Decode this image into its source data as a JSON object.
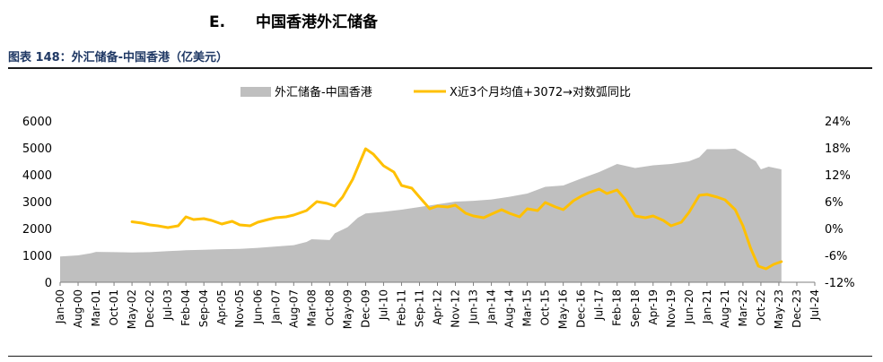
{
  "section": {
    "number": "E.",
    "title": "中国香港外汇储备"
  },
  "figure_title": "图表 148：外汇储备-中国香港（亿美元）",
  "colors": {
    "area": "#bfbfbf",
    "line": "#ffc000",
    "title": "#1f3864"
  },
  "chart_data": {
    "type": "area",
    "title": "图表 148：外汇储备-中国香港（亿美元）",
    "legend_position": "top",
    "x_range": [
      "2000-01",
      "2024-07"
    ],
    "x_ticks": [
      "Jan-00",
      "Aug-00",
      "Mar-01",
      "Oct-01",
      "May-02",
      "Dec-02",
      "Jul-03",
      "Feb-04",
      "Sep-04",
      "Apr-05",
      "Nov-05",
      "Jun-06",
      "Jan-07",
      "Aug-07",
      "Mar-08",
      "Oct-08",
      "May-09",
      "Dec-09",
      "Jul-10",
      "Feb-11",
      "Sep-11",
      "Apr-12",
      "Nov-12",
      "Jun-13",
      "Jan-14",
      "Aug-14",
      "Mar-15",
      "Oct-15",
      "May-16",
      "Dec-16",
      "Jul-17",
      "Feb-18",
      "Sep-18",
      "Apr-19",
      "Nov-19",
      "Jun-20",
      "Jan-21",
      "Aug-21",
      "Mar-22",
      "Oct-22",
      "May-23",
      "Dec-23",
      "Jul-24"
    ],
    "y_left": {
      "min": 0,
      "max": 6000,
      "ticks": [
        "0",
        "1000",
        "2000",
        "3000",
        "4000",
        "5000",
        "6000"
      ]
    },
    "y_right": {
      "min": -12,
      "max": 24,
      "ticks": [
        "-12%",
        "-6%",
        "0%",
        "6%",
        "12%",
        "18%",
        "24%"
      ]
    },
    "series": [
      {
        "name": "外汇储备-中国香港",
        "type": "area",
        "axis": "left",
        "points": [
          [
            "2000-01",
            960
          ],
          [
            "2000-08",
            1000
          ],
          [
            "2001-01",
            1080
          ],
          [
            "2001-03",
            1130
          ],
          [
            "2001-10",
            1120
          ],
          [
            "2002-05",
            1110
          ],
          [
            "2002-12",
            1120
          ],
          [
            "2003-07",
            1160
          ],
          [
            "2003-12",
            1180
          ],
          [
            "2004-02",
            1190
          ],
          [
            "2004-09",
            1210
          ],
          [
            "2005-04",
            1230
          ],
          [
            "2005-11",
            1240
          ],
          [
            "2006-06",
            1280
          ],
          [
            "2007-01",
            1330
          ],
          [
            "2007-08",
            1380
          ],
          [
            "2008-01",
            1500
          ],
          [
            "2008-03",
            1600
          ],
          [
            "2008-10",
            1570
          ],
          [
            "2008-12",
            1820
          ],
          [
            "2009-05",
            2050
          ],
          [
            "2009-09",
            2400
          ],
          [
            "2009-12",
            2560
          ],
          [
            "2010-07",
            2620
          ],
          [
            "2011-02",
            2700
          ],
          [
            "2011-09",
            2800
          ],
          [
            "2012-04",
            2900
          ],
          [
            "2012-11",
            3000
          ],
          [
            "2013-06",
            3030
          ],
          [
            "2014-01",
            3080
          ],
          [
            "2014-08",
            3180
          ],
          [
            "2015-03",
            3300
          ],
          [
            "2015-10",
            3550
          ],
          [
            "2016-05",
            3600
          ],
          [
            "2016-12",
            3860
          ],
          [
            "2017-07",
            4100
          ],
          [
            "2018-02",
            4400
          ],
          [
            "2018-09",
            4250
          ],
          [
            "2019-04",
            4350
          ],
          [
            "2019-11",
            4400
          ],
          [
            "2020-06",
            4500
          ],
          [
            "2020-10",
            4650
          ],
          [
            "2021-01",
            4950
          ],
          [
            "2021-08",
            4950
          ],
          [
            "2021-12",
            4970
          ],
          [
            "2022-03",
            4800
          ],
          [
            "2022-08",
            4500
          ],
          [
            "2022-10",
            4200
          ],
          [
            "2023-01",
            4300
          ],
          [
            "2023-06",
            4200
          ]
        ]
      },
      {
        "name": "X近3个月均值+3072→对数弧同比",
        "type": "line",
        "axis": "right",
        "points": [
          [
            "2002-05",
            1.5
          ],
          [
            "2002-09",
            1.2
          ],
          [
            "2002-12",
            0.8
          ],
          [
            "2003-03",
            0.6
          ],
          [
            "2003-07",
            0.2
          ],
          [
            "2003-11",
            0.6
          ],
          [
            "2004-02",
            2.6
          ],
          [
            "2004-05",
            2.0
          ],
          [
            "2004-09",
            2.2
          ],
          [
            "2004-12",
            1.8
          ],
          [
            "2005-04",
            1.0
          ],
          [
            "2005-08",
            1.6
          ],
          [
            "2005-11",
            0.8
          ],
          [
            "2006-03",
            0.6
          ],
          [
            "2006-06",
            1.4
          ],
          [
            "2006-10",
            2.0
          ],
          [
            "2007-01",
            2.4
          ],
          [
            "2007-05",
            2.6
          ],
          [
            "2007-08",
            3.0
          ],
          [
            "2008-01",
            4.0
          ],
          [
            "2008-05",
            6.0
          ],
          [
            "2008-09",
            5.6
          ],
          [
            "2008-12",
            5.0
          ],
          [
            "2009-03",
            7.0
          ],
          [
            "2009-07",
            11.0
          ],
          [
            "2009-12",
            17.8
          ],
          [
            "2010-03",
            16.6
          ],
          [
            "2010-07",
            14.0
          ],
          [
            "2010-11",
            12.6
          ],
          [
            "2011-02",
            9.6
          ],
          [
            "2011-06",
            9.0
          ],
          [
            "2011-09",
            7.0
          ],
          [
            "2012-01",
            4.4
          ],
          [
            "2012-04",
            5.0
          ],
          [
            "2012-08",
            4.8
          ],
          [
            "2012-11",
            5.2
          ],
          [
            "2013-03",
            3.4
          ],
          [
            "2013-06",
            2.8
          ],
          [
            "2013-10",
            2.4
          ],
          [
            "2014-01",
            3.2
          ],
          [
            "2014-05",
            4.2
          ],
          [
            "2014-08",
            3.4
          ],
          [
            "2014-12",
            2.6
          ],
          [
            "2015-03",
            4.4
          ],
          [
            "2015-07",
            4.0
          ],
          [
            "2015-10",
            5.8
          ],
          [
            "2016-02",
            4.8
          ],
          [
            "2016-05",
            4.2
          ],
          [
            "2016-09",
            6.2
          ],
          [
            "2016-12",
            7.2
          ],
          [
            "2017-03",
            8.0
          ],
          [
            "2017-07",
            8.8
          ],
          [
            "2017-10",
            7.8
          ],
          [
            "2018-02",
            8.6
          ],
          [
            "2018-05",
            6.6
          ],
          [
            "2018-09",
            2.8
          ],
          [
            "2019-01",
            2.4
          ],
          [
            "2019-04",
            2.8
          ],
          [
            "2019-08",
            1.8
          ],
          [
            "2019-11",
            0.6
          ],
          [
            "2020-03",
            1.4
          ],
          [
            "2020-06",
            3.6
          ],
          [
            "2020-10",
            7.4
          ],
          [
            "2021-01",
            7.6
          ],
          [
            "2021-05",
            7.0
          ],
          [
            "2021-08",
            6.4
          ],
          [
            "2021-12",
            4.2
          ],
          [
            "2022-03",
            0.6
          ],
          [
            "2022-06",
            -4.4
          ],
          [
            "2022-09",
            -8.4
          ],
          [
            "2022-12",
            -9.0
          ],
          [
            "2023-03",
            -8.0
          ],
          [
            "2023-06",
            -7.4
          ]
        ]
      }
    ]
  }
}
